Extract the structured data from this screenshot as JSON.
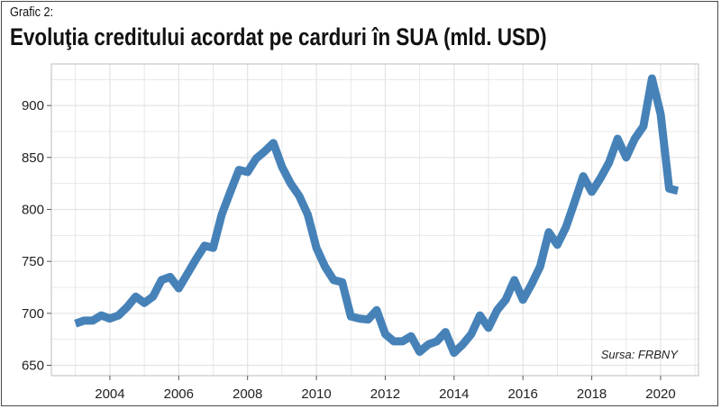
{
  "header": {
    "eyebrow": "Grafic 2:",
    "title": "Evoluţia creditului acordat pe carduri în SUA (mld. USD)"
  },
  "source_note": "Sursa: FRBNY",
  "colors": {
    "line": "#4682b8",
    "grid": "#e3e3e3",
    "frame": "#4a4a4a"
  },
  "chart_data": {
    "type": "line",
    "title": "Evoluţia creditului acordat pe carduri în SUA (mld. USD)",
    "xlabel": "",
    "ylabel": "",
    "xlim": [
      2002.3,
      2021.1
    ],
    "ylim": [
      640,
      940
    ],
    "x_ticks": [
      2004,
      2006,
      2008,
      2010,
      2012,
      2014,
      2016,
      2018,
      2020
    ],
    "y_ticks": [
      650,
      700,
      750,
      800,
      850,
      900
    ],
    "grid": true,
    "legend": "none",
    "series": [
      {
        "x": [
          2003.0,
          2003.25,
          2003.5,
          2003.75,
          2004.0,
          2004.25,
          2004.5,
          2004.75,
          2005.0,
          2005.25,
          2005.5,
          2005.75,
          2006.0,
          2006.25,
          2006.5,
          2006.75,
          2007.0,
          2007.25,
          2007.5,
          2007.75,
          2008.0,
          2008.25,
          2008.5,
          2008.75,
          2009.0,
          2009.25,
          2009.5,
          2009.75,
          2010.0,
          2010.25,
          2010.5,
          2010.75,
          2011.0,
          2011.25,
          2011.5,
          2011.75,
          2012.0,
          2012.25,
          2012.5,
          2012.75,
          2013.0,
          2013.25,
          2013.5,
          2013.75,
          2014.0,
          2014.25,
          2014.5,
          2014.75,
          2015.0,
          2015.25,
          2015.5,
          2015.75,
          2016.0,
          2016.25,
          2016.5,
          2016.75,
          2017.0,
          2017.25,
          2017.5,
          2017.75,
          2018.0,
          2018.25,
          2018.5,
          2018.75,
          2019.0,
          2019.25,
          2019.5,
          2019.75,
          2020.0,
          2020.25,
          2020.5
        ],
        "values": [
          690,
          693,
          693,
          698,
          695,
          698,
          706,
          716,
          710,
          716,
          732,
          735,
          724,
          738,
          752,
          765,
          763,
          795,
          817,
          838,
          836,
          849,
          856,
          864,
          841,
          825,
          813,
          795,
          763,
          745,
          732,
          730,
          697,
          695,
          694,
          703,
          680,
          673,
          673,
          678,
          663,
          670,
          673,
          682,
          662,
          670,
          680,
          698,
          686,
          703,
          713,
          732,
          713,
          728,
          745,
          778,
          766,
          783,
          807,
          832,
          817,
          830,
          845,
          868,
          850,
          868,
          880,
          926,
          892,
          820,
          818
        ]
      }
    ]
  }
}
